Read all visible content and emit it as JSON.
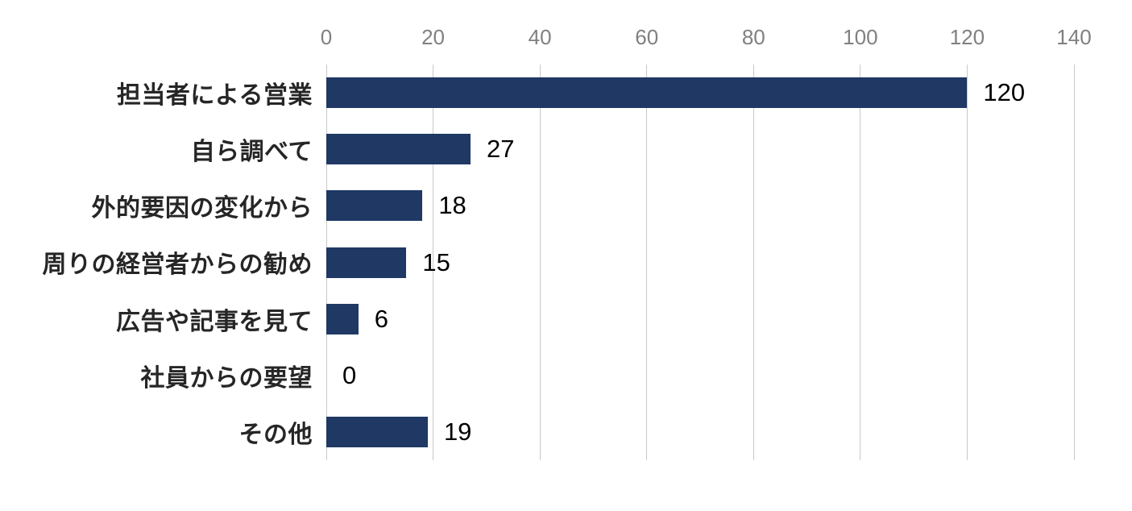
{
  "chart_data": {
    "type": "bar",
    "orientation": "horizontal",
    "title": "",
    "xlabel": "",
    "ylabel": "",
    "categories": [
      "担当者による営業",
      "自ら調べて",
      "外的要因の変化から",
      "周りの経営者からの勧め",
      "広告や記事を見て",
      "社員からの要望",
      "その他"
    ],
    "values": [
      120,
      27,
      18,
      15,
      6,
      0,
      19
    ],
    "value_labels": [
      "120",
      "27",
      "18",
      "15",
      "6",
      "0",
      "19"
    ],
    "x_ticks": [
      "0",
      "20",
      "40",
      "60",
      "80",
      "100",
      "120",
      "140"
    ],
    "xlim": [
      0,
      140
    ],
    "grid": "vertical-gridlines",
    "legend": "none",
    "colors": {
      "bar": "#1F3864",
      "gridline": "#C9C9C9",
      "tick_label": "#808080",
      "category_label": "#262626",
      "value_label": "#000000",
      "background": "#FFFFFF"
    }
  }
}
